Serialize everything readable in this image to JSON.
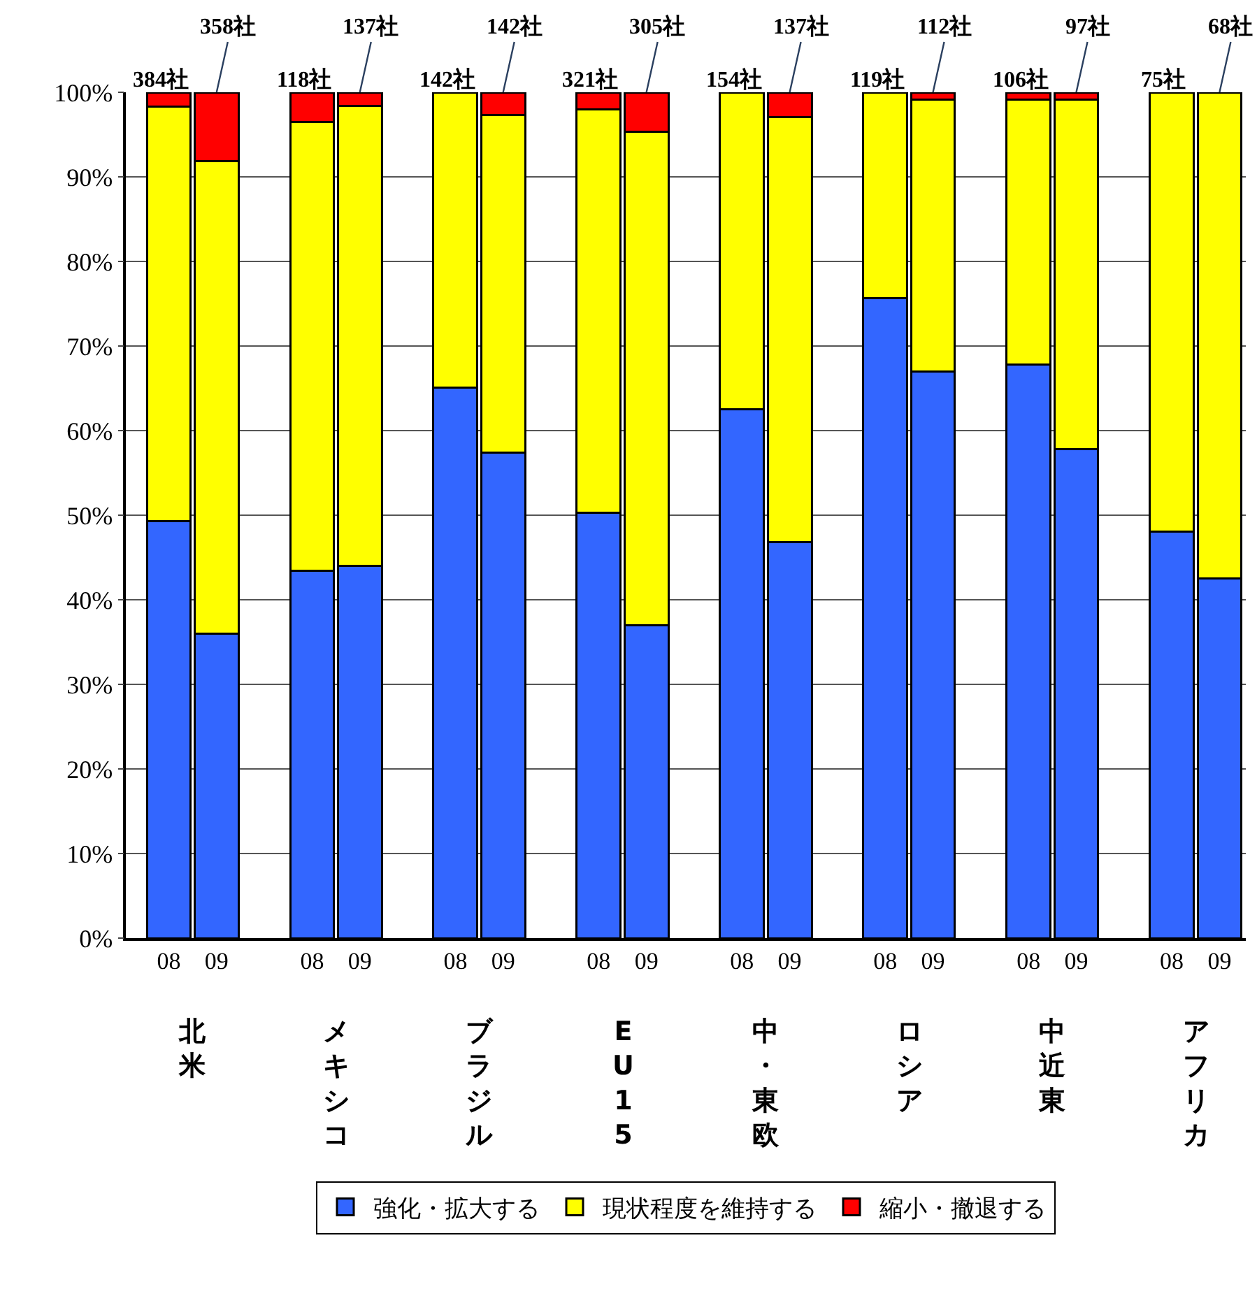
{
  "chart_data": {
    "type": "bar",
    "stacked": true,
    "categories": [
      "08",
      "09",
      "08",
      "09",
      "08",
      "09",
      "08",
      "09",
      "08",
      "09",
      "08",
      "09",
      "08",
      "09",
      "08",
      "09"
    ],
    "series": [
      {
        "name": "強化・拡大する",
        "color": "#3366ff",
        "values": [
          49.3,
          36.0,
          43.4,
          44.0,
          65.1,
          57.4,
          50.3,
          37.0,
          62.5,
          46.8,
          75.7,
          67.0,
          67.8,
          57.8,
          48.1,
          42.5
        ]
      },
      {
        "name": "現状程度を維持する",
        "color": "#ffff00",
        "values": [
          49.0,
          55.9,
          53.1,
          54.4,
          34.9,
          39.9,
          47.7,
          58.3,
          37.5,
          50.3,
          24.3,
          32.1,
          31.3,
          41.3,
          51.9,
          57.5
        ]
      },
      {
        "name": "縮小・撤退する",
        "color": "#ff0000",
        "values": [
          1.7,
          8.1,
          3.5,
          1.6,
          0.0,
          2.7,
          2.0,
          4.7,
          0.0,
          2.9,
          0.0,
          0.9,
          0.9,
          0.9,
          0.0,
          0.0
        ]
      }
    ],
    "annotations": [
      "北米",
      "メキシコ",
      "ブラジル",
      "EU15",
      "中・東欧",
      "ロシア",
      "中近東",
      "アフリカ",
      "384社",
      "358社",
      "118社",
      "137社",
      "142社",
      "142社",
      "321社",
      "305社",
      "154社",
      "137社",
      "119社",
      "112社",
      "106社",
      "97社",
      "75社",
      "68社"
    ],
    "ylim": [
      0,
      100
    ],
    "yticks": [
      {
        "value": 0,
        "label": "0%"
      },
      {
        "value": 10,
        "label": "10%"
      },
      {
        "value": 20,
        "label": "20%"
      },
      {
        "value": 30,
        "label": "30%"
      },
      {
        "value": 40,
        "label": "40%"
      },
      {
        "value": 50,
        "label": "50%"
      },
      {
        "value": 60,
        "label": "60%"
      },
      {
        "value": 70,
        "label": "70%"
      },
      {
        "value": 80,
        "label": "80%"
      },
      {
        "value": 90,
        "label": "90%"
      },
      {
        "value": 100,
        "label": "100%"
      }
    ],
    "grid": "y",
    "legend": "bottom"
  }
}
